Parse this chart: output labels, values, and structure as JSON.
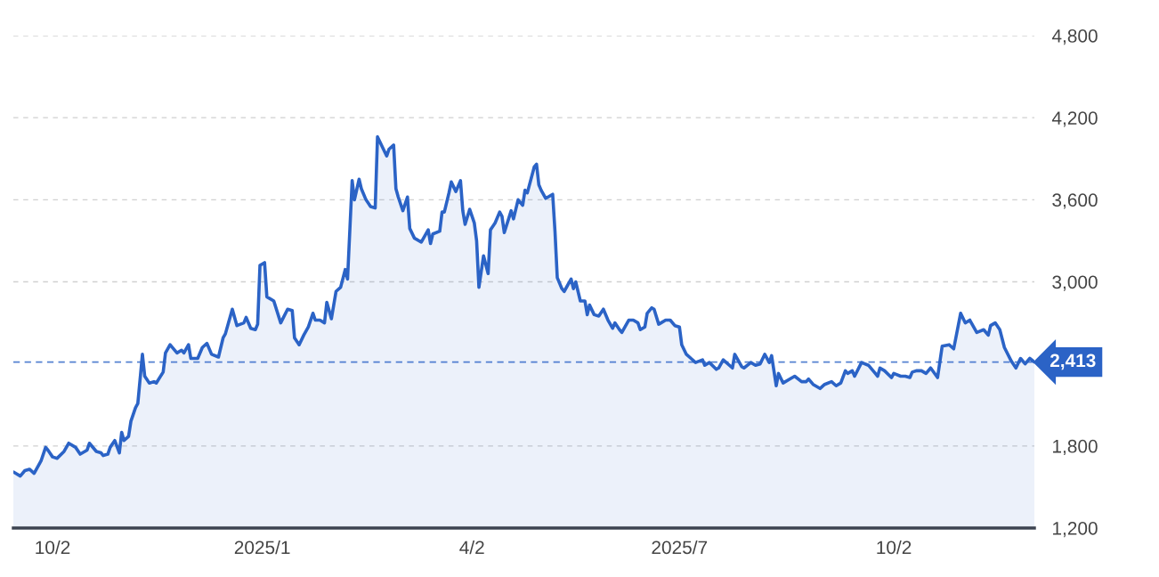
{
  "chart_data": {
    "type": "area",
    "x": [
      "2024-09-15",
      "2024-09-18",
      "2024-09-20",
      "2024-09-22",
      "2024-09-24",
      "2024-09-27",
      "2024-09-29",
      "2024-09-30",
      "2024-10-02",
      "2024-10-04",
      "2024-10-07",
      "2024-10-09",
      "2024-10-12",
      "2024-10-14",
      "2024-10-17",
      "2024-10-18",
      "2024-10-21",
      "2024-10-23",
      "2024-10-24",
      "2024-10-26",
      "2024-10-27",
      "2024-10-29",
      "2024-10-31",
      "2024-11-01",
      "2024-11-02",
      "2024-11-04",
      "2024-11-05",
      "2024-11-07",
      "2024-11-08",
      "2024-11-10",
      "2024-11-11",
      "2024-11-13",
      "2024-11-15",
      "2024-11-16",
      "2024-11-19",
      "2024-11-20",
      "2024-11-22",
      "2024-11-25",
      "2024-11-27",
      "2024-11-28",
      "2024-11-30",
      "2024-12-01",
      "2024-12-04",
      "2024-12-06",
      "2024-12-08",
      "2024-12-10",
      "2024-12-13",
      "2024-12-15",
      "2024-12-16",
      "2024-12-18",
      "2024-12-19",
      "2024-12-21",
      "2024-12-24",
      "2024-12-25",
      "2024-12-27",
      "2024-12-29",
      "2024-12-30",
      "2024-12-31",
      "2025-01-02",
      "2025-01-03",
      "2025-01-06",
      "2025-01-09",
      "2025-01-12",
      "2025-01-14",
      "2025-01-15",
      "2025-01-17",
      "2025-01-19",
      "2025-01-21",
      "2025-01-23",
      "2025-01-24",
      "2025-01-26",
      "2025-01-28",
      "2025-01-29",
      "2025-01-31",
      "2025-02-02",
      "2025-02-04",
      "2025-02-06",
      "2025-02-07",
      "2025-02-09",
      "2025-02-10",
      "2025-02-12",
      "2025-02-13",
      "2025-02-15",
      "2025-02-17",
      "2025-02-19",
      "2025-02-20",
      "2025-02-24",
      "2025-02-25",
      "2025-02-27",
      "2025-02-28",
      "2025-03-01",
      "2025-03-03",
      "2025-03-05",
      "2025-03-06",
      "2025-03-08",
      "2025-03-11",
      "2025-03-14",
      "2025-03-15",
      "2025-03-16",
      "2025-03-19",
      "2025-03-20",
      "2025-03-21",
      "2025-03-23",
      "2025-03-24",
      "2025-03-26",
      "2025-03-28",
      "2025-03-29",
      "2025-03-30",
      "2025-04-01",
      "2025-04-03",
      "2025-04-04",
      "2025-04-05",
      "2025-04-07",
      "2025-04-09",
      "2025-04-10",
      "2025-04-12",
      "2025-04-14",
      "2025-04-15",
      "2025-04-16",
      "2025-04-19",
      "2025-04-20",
      "2025-04-22",
      "2025-04-24",
      "2025-04-25",
      "2025-04-26",
      "2025-04-29",
      "2025-04-30",
      "2025-05-01",
      "2025-05-02",
      "2025-05-04",
      "2025-05-07",
      "2025-05-08",
      "2025-05-09",
      "2025-05-11",
      "2025-05-12",
      "2025-05-15",
      "2025-05-16",
      "2025-05-17",
      "2025-05-19",
      "2025-05-21",
      "2025-05-22",
      "2025-05-23",
      "2025-05-25",
      "2025-05-27",
      "2025-05-29",
      "2025-05-31",
      "2025-06-02",
      "2025-06-03",
      "2025-06-05",
      "2025-06-06",
      "2025-06-09",
      "2025-06-11",
      "2025-06-13",
      "2025-06-14",
      "2025-06-16",
      "2025-06-17",
      "2025-06-19",
      "2025-06-20",
      "2025-06-22",
      "2025-06-23",
      "2025-06-25",
      "2025-06-27",
      "2025-06-29",
      "2025-07-01",
      "2025-07-02",
      "2025-07-04",
      "2025-07-06",
      "2025-07-08",
      "2025-07-11",
      "2025-07-12",
      "2025-07-14",
      "2025-07-17",
      "2025-07-18",
      "2025-07-20",
      "2025-07-24",
      "2025-07-25",
      "2025-07-28",
      "2025-07-29",
      "2025-08-01",
      "2025-08-03",
      "2025-08-05",
      "2025-08-07",
      "2025-08-09",
      "2025-08-10",
      "2025-08-12",
      "2025-08-13",
      "2025-08-15",
      "2025-08-18",
      "2025-08-20",
      "2025-08-23",
      "2025-08-25",
      "2025-08-26",
      "2025-08-28",
      "2025-08-31",
      "2025-09-02",
      "2025-09-05",
      "2025-09-07",
      "2025-09-09",
      "2025-09-11",
      "2025-09-12",
      "2025-09-14",
      "2025-09-15",
      "2025-09-18",
      "2025-09-21",
      "2025-09-24",
      "2025-09-25",
      "2025-09-26",
      "2025-09-28",
      "2025-10-01",
      "2025-10-02",
      "2025-10-05",
      "2025-10-07",
      "2025-10-09",
      "2025-10-10",
      "2025-10-12",
      "2025-10-14",
      "2025-10-16",
      "2025-10-18",
      "2025-10-21",
      "2025-10-23",
      "2025-10-26",
      "2025-10-28",
      "2025-10-31",
      "2025-11-02",
      "2025-11-04",
      "2025-11-07",
      "2025-11-10",
      "2025-11-12",
      "2025-11-13",
      "2025-11-15",
      "2025-11-17",
      "2025-11-19",
      "2025-11-22",
      "2025-11-24",
      "2025-11-26",
      "2025-11-28",
      "2025-11-30",
      "2025-12-02"
    ],
    "series": [
      {
        "color": "#2b63c6",
        "values": [
          1610,
          1580,
          1620,
          1630,
          1600,
          1690,
          1790,
          1770,
          1720,
          1710,
          1760,
          1820,
          1790,
          1740,
          1770,
          1820,
          1760,
          1750,
          1730,
          1740,
          1790,
          1840,
          1750,
          1900,
          1840,
          1870,
          1980,
          2080,
          2110,
          2470,
          2310,
          2260,
          2270,
          2260,
          2340,
          2480,
          2540,
          2480,
          2500,
          2480,
          2540,
          2440,
          2440,
          2520,
          2550,
          2470,
          2450,
          2590,
          2620,
          2740,
          2800,
          2680,
          2700,
          2740,
          2660,
          2650,
          2690,
          3120,
          3140,
          2890,
          2860,
          2700,
          2800,
          2790,
          2590,
          2540,
          2610,
          2670,
          2770,
          2720,
          2720,
          2700,
          2850,
          2730,
          2930,
          2960,
          3090,
          3020,
          3740,
          3600,
          3750,
          3680,
          3600,
          3550,
          3540,
          4060,
          3920,
          3970,
          4000,
          3680,
          3620,
          3520,
          3620,
          3390,
          3320,
          3290,
          3380,
          3280,
          3350,
          3370,
          3510,
          3510,
          3650,
          3730,
          3660,
          3740,
          3520,
          3420,
          3530,
          3430,
          3300,
          2960,
          3190,
          3060,
          3380,
          3430,
          3510,
          3480,
          3360,
          3520,
          3460,
          3600,
          3560,
          3670,
          3650,
          3840,
          3860,
          3710,
          3670,
          3610,
          3640,
          3370,
          3030,
          2950,
          2930,
          3020,
          2950,
          3000,
          2860,
          2860,
          2760,
          2830,
          2760,
          2750,
          2800,
          2720,
          2660,
          2700,
          2650,
          2630,
          2720,
          2720,
          2700,
          2650,
          2670,
          2770,
          2810,
          2800,
          2690,
          2700,
          2720,
          2720,
          2680,
          2670,
          2540,
          2470,
          2440,
          2410,
          2430,
          2390,
          2410,
          2360,
          2370,
          2430,
          2370,
          2470,
          2380,
          2370,
          2410,
          2390,
          2400,
          2470,
          2410,
          2460,
          2240,
          2330,
          2260,
          2290,
          2310,
          2270,
          2270,
          2290,
          2250,
          2220,
          2250,
          2270,
          2240,
          2260,
          2350,
          2330,
          2350,
          2310,
          2410,
          2390,
          2330,
          2310,
          2370,
          2350,
          2300,
          2330,
          2310,
          2310,
          2300,
          2340,
          2350,
          2350,
          2330,
          2370,
          2300,
          2530,
          2540,
          2510,
          2770,
          2700,
          2720,
          2630,
          2650,
          2610,
          2680,
          2700,
          2650,
          2520,
          2420,
          2370,
          2440,
          2400,
          2440,
          2413
        ]
      }
    ],
    "xlim": [
      "2024-09-15",
      "2025-12-02"
    ],
    "xticks": [
      {
        "value": "2024-10-02",
        "label": "10/2"
      },
      {
        "value": "2025-01-01",
        "label": "2025/1"
      },
      {
        "value": "2025-04-02",
        "label": "4/2"
      },
      {
        "value": "2025-07-01",
        "label": "2025/7"
      },
      {
        "value": "2025-10-02",
        "label": "10/2"
      }
    ],
    "ylim": [
      1200,
      4800
    ],
    "yticks": [
      {
        "value": 1200,
        "label": "1,200"
      },
      {
        "value": 1800,
        "label": "1,800"
      },
      {
        "value": 3000,
        "label": "3,000"
      },
      {
        "value": 3600,
        "label": "3,600"
      },
      {
        "value": 4200,
        "label": "4,200"
      },
      {
        "value": 4800,
        "label": "4,800"
      }
    ],
    "ref_lines": [
      {
        "axis": "y",
        "value": 2413,
        "label": "2,413",
        "color": "#2b63c6",
        "line_style": "dashed"
      }
    ],
    "grid": "y"
  }
}
